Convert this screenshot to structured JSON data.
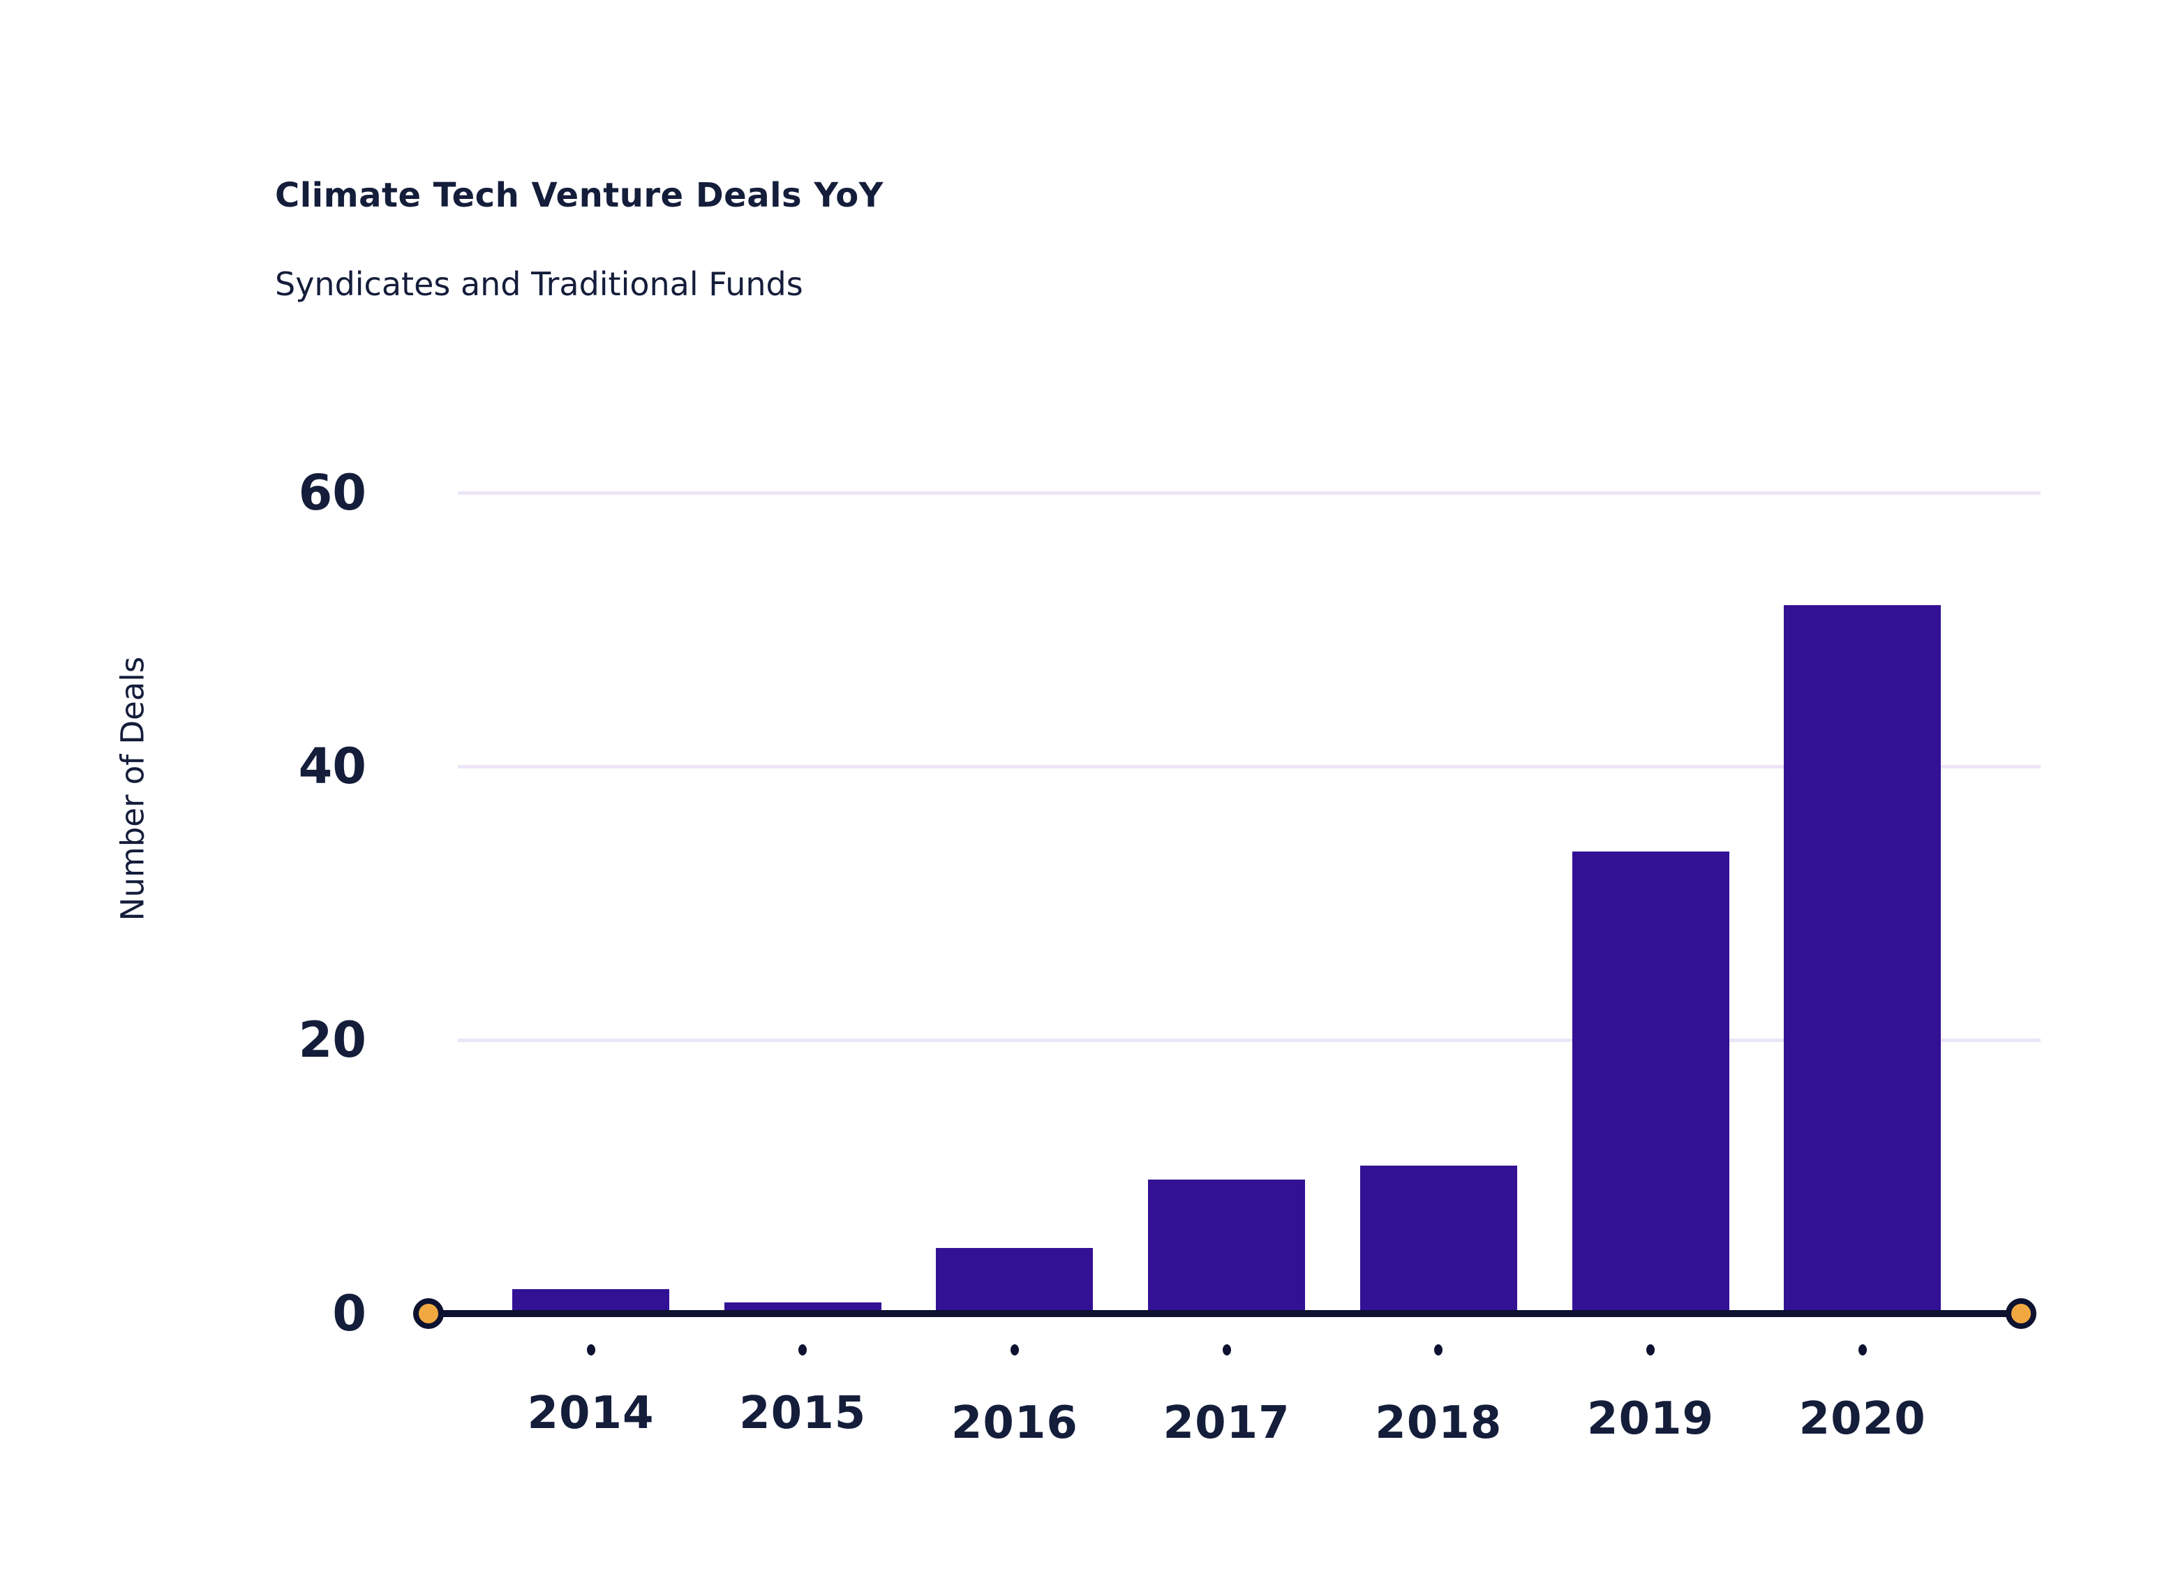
{
  "chart_data": {
    "type": "bar",
    "title": "Climate Tech Venture Deals YoY",
    "subtitle": "Syndicates and Traditional Funds",
    "ylabel": "Number of Deals",
    "xlabel": "",
    "categories": [
      "2014",
      "2015",
      "2016",
      "2017",
      "2018",
      "2019",
      "2020"
    ],
    "values": [
      2,
      1,
      5,
      10,
      11,
      34,
      52
    ],
    "yticks": [
      0,
      20,
      40,
      60
    ],
    "ylim": [
      0,
      62
    ],
    "grid": "horizontal-light",
    "legend_position": "none",
    "colors": {
      "bar": "#331195",
      "axis": "#0d1230",
      "gridline": "#ece5f7",
      "endpoint_fill": "#f2a840",
      "text": "#141d3a"
    }
  }
}
